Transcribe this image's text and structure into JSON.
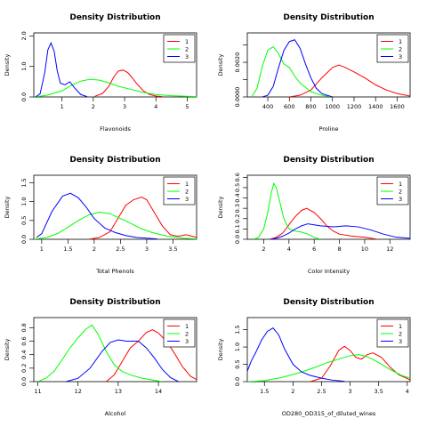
{
  "chart_data": [
    {
      "type": "line",
      "title": "Density Distribution",
      "xlabel": "Flavonoids",
      "ylabel": "Density",
      "xlim": [
        0.1,
        5.3
      ],
      "ylim": [
        0,
        2.1
      ],
      "xticks": [
        1,
        2,
        3,
        4,
        5
      ],
      "yticks": [
        0.0,
        1.0,
        2.0
      ],
      "ytick_labels": [
        "0.0",
        "1.0",
        "2.0"
      ],
      "legend_position": "top-right",
      "series": [
        {
          "name": "1",
          "color": "#ff0000",
          "x": [
            2.05,
            2.3,
            2.5,
            2.65,
            2.8,
            2.95,
            3.1,
            3.25,
            3.4,
            3.6,
            3.8,
            4.0,
            4.2
          ],
          "y": [
            0.02,
            0.12,
            0.35,
            0.65,
            0.85,
            0.88,
            0.8,
            0.62,
            0.42,
            0.2,
            0.08,
            0.03,
            0.01
          ]
        },
        {
          "name": "2",
          "color": "#00ff00",
          "x": [
            0.1,
            0.5,
            1.0,
            1.3,
            1.6,
            1.9,
            2.2,
            2.5,
            2.8,
            3.2,
            3.6,
            4.0,
            4.5,
            5.0,
            5.3
          ],
          "y": [
            0.0,
            0.05,
            0.2,
            0.38,
            0.52,
            0.58,
            0.55,
            0.46,
            0.35,
            0.25,
            0.15,
            0.08,
            0.04,
            0.02,
            0.01
          ]
        },
        {
          "name": "3",
          "color": "#0000ff",
          "x": [
            0.15,
            0.3,
            0.45,
            0.55,
            0.65,
            0.75,
            0.85,
            0.95,
            1.1,
            1.25,
            1.4,
            1.6,
            1.8
          ],
          "y": [
            0.0,
            0.1,
            0.8,
            1.55,
            1.77,
            1.5,
            0.85,
            0.45,
            0.4,
            0.5,
            0.3,
            0.08,
            0.01
          ]
        }
      ]
    },
    {
      "type": "line",
      "title": "Density Distribution",
      "xlabel": "Proline",
      "ylabel": "Density",
      "xlim": [
        210,
        1720
      ],
      "ylim": [
        0,
        0.0037
      ],
      "xticks": [
        400,
        600,
        800,
        1000,
        1200,
        1400,
        1600
      ],
      "yticks": [
        0.0,
        0.001,
        0.002,
        0.003
      ],
      "ytick_labels": [
        "0.0000",
        "",
        "0.0020",
        ""
      ],
      "legend_position": "top-right",
      "series": [
        {
          "name": "1",
          "color": "#ff0000",
          "x": [
            600,
            700,
            800,
            900,
            1000,
            1060,
            1120,
            1200,
            1300,
            1400,
            1500,
            1600,
            1720
          ],
          "y": [
            0.0,
            0.0001,
            0.0004,
            0.0011,
            0.0017,
            0.00185,
            0.0017,
            0.00145,
            0.0011,
            0.0007,
            0.0004,
            0.0002,
            5e-05
          ]
        },
        {
          "name": "2",
          "color": "#00ff00",
          "x": [
            250,
            300,
            350,
            400,
            450,
            500,
            550,
            600,
            650,
            700,
            800,
            900,
            1000
          ],
          "y": [
            0.0,
            0.0005,
            0.0018,
            0.0027,
            0.0029,
            0.0025,
            0.0019,
            0.0017,
            0.0012,
            0.0008,
            0.0003,
            0.0001,
            0.0
          ]
        },
        {
          "name": "3",
          "color": "#0000ff",
          "x": [
            350,
            400,
            450,
            500,
            550,
            600,
            650,
            700,
            750,
            800,
            850,
            900,
            950,
            1000
          ],
          "y": [
            0.0,
            0.0001,
            0.0006,
            0.0017,
            0.0027,
            0.0032,
            0.0033,
            0.0028,
            0.0019,
            0.0011,
            0.0005,
            0.0002,
            0.0001,
            0.0
          ]
        }
      ]
    },
    {
      "type": "line",
      "title": "Density Distribution",
      "xlabel": "Total Phenols",
      "ylabel": "Density",
      "xlim": [
        0.85,
        3.95
      ],
      "ylim": [
        0,
        1.7
      ],
      "xticks": [
        1.0,
        1.5,
        2.0,
        2.5,
        3.0,
        3.5
      ],
      "yticks": [
        0.0,
        0.5,
        1.0,
        1.5
      ],
      "ytick_labels": [
        "0.0",
        "0.5",
        "1.0",
        "1.5"
      ],
      "legend_position": "top-right",
      "series": [
        {
          "name": "1",
          "color": "#ff0000",
          "x": [
            1.9,
            2.1,
            2.3,
            2.45,
            2.6,
            2.75,
            2.9,
            3.0,
            3.15,
            3.3,
            3.45,
            3.6,
            3.75,
            3.95
          ],
          "y": [
            0.0,
            0.05,
            0.2,
            0.55,
            0.9,
            1.05,
            1.12,
            1.05,
            0.7,
            0.35,
            0.12,
            0.08,
            0.12,
            0.05
          ]
        },
        {
          "name": "2",
          "color": "#00ff00",
          "x": [
            0.85,
            1.1,
            1.3,
            1.5,
            1.7,
            1.9,
            2.1,
            2.3,
            2.5,
            2.7,
            2.9,
            3.1,
            3.4,
            3.7,
            3.95
          ],
          "y": [
            0.0,
            0.05,
            0.15,
            0.32,
            0.5,
            0.65,
            0.72,
            0.68,
            0.55,
            0.42,
            0.28,
            0.18,
            0.08,
            0.03,
            0.01
          ]
        },
        {
          "name": "3",
          "color": "#0000ff",
          "x": [
            0.9,
            1.0,
            1.2,
            1.4,
            1.55,
            1.7,
            1.85,
            2.0,
            2.2,
            2.4,
            2.6,
            2.8,
            3.2
          ],
          "y": [
            0.05,
            0.15,
            0.75,
            1.15,
            1.22,
            1.1,
            0.85,
            0.55,
            0.3,
            0.18,
            0.1,
            0.05,
            0.01
          ]
        }
      ]
    },
    {
      "type": "line",
      "title": "Density Distribution",
      "xlabel": "Color Intensity",
      "ylabel": "Density",
      "xlim": [
        0.7,
        13.6
      ],
      "ylim": [
        0,
        0.62
      ],
      "xticks": [
        2,
        4,
        6,
        8,
        10,
        12
      ],
      "yticks": [
        0.0,
        0.1,
        0.2,
        0.3,
        0.4,
        0.5,
        0.6
      ],
      "ytick_labels": [
        "0.0",
        "0.1",
        "0.2",
        "0.3",
        "0.4",
        "0.5",
        "0.6"
      ],
      "legend_position": "top-right",
      "series": [
        {
          "name": "1",
          "color": "#ff0000",
          "x": [
            2.5,
            3.0,
            3.5,
            4.0,
            4.5,
            5.0,
            5.4,
            6.0,
            6.5,
            7.0,
            7.5,
            8.0,
            9.0,
            10.0,
            11.0
          ],
          "y": [
            0.0,
            0.02,
            0.06,
            0.14,
            0.22,
            0.28,
            0.3,
            0.26,
            0.2,
            0.13,
            0.08,
            0.05,
            0.03,
            0.02,
            0.0
          ]
        },
        {
          "name": "2",
          "color": "#00ff00",
          "x": [
            1.2,
            1.6,
            2.0,
            2.3,
            2.6,
            2.8,
            3.0,
            3.3,
            3.6,
            4.0,
            4.5,
            5.0,
            5.5,
            6.0,
            6.5
          ],
          "y": [
            0.0,
            0.02,
            0.1,
            0.25,
            0.45,
            0.54,
            0.5,
            0.35,
            0.2,
            0.1,
            0.08,
            0.07,
            0.05,
            0.02,
            0.0
          ]
        },
        {
          "name": "3",
          "color": "#0000ff",
          "x": [
            2.5,
            3.0,
            3.5,
            4.0,
            4.5,
            5.0,
            5.5,
            6.5,
            7.5,
            8.5,
            9.5,
            10.5,
            11.5,
            12.5,
            13.6
          ],
          "y": [
            0.0,
            0.01,
            0.03,
            0.06,
            0.1,
            0.13,
            0.15,
            0.13,
            0.12,
            0.13,
            0.12,
            0.09,
            0.05,
            0.02,
            0.01
          ]
        }
      ]
    },
    {
      "type": "line",
      "title": "Density Distribution",
      "xlabel": "Alcohol",
      "ylabel": "Density",
      "xlim": [
        10.9,
        14.95
      ],
      "ylim": [
        0,
        0.95
      ],
      "xticks": [
        11,
        12,
        13,
        14
      ],
      "yticks": [
        0.0,
        0.2,
        0.4,
        0.6,
        0.8
      ],
      "ytick_labels": [
        "0.0",
        "0.2",
        "0.4",
        "0.6",
        "0.8"
      ],
      "legend_position": "top-right",
      "series": [
        {
          "name": "1",
          "color": "#ff0000",
          "x": [
            12.7,
            12.9,
            13.1,
            13.3,
            13.5,
            13.7,
            13.85,
            14.0,
            14.2,
            14.4,
            14.6,
            14.8,
            14.95
          ],
          "y": [
            0.0,
            0.1,
            0.3,
            0.5,
            0.6,
            0.73,
            0.77,
            0.72,
            0.6,
            0.42,
            0.22,
            0.08,
            0.03
          ]
        },
        {
          "name": "2",
          "color": "#00ff00",
          "x": [
            11.0,
            11.2,
            11.4,
            11.6,
            11.8,
            12.0,
            12.2,
            12.35,
            12.5,
            12.7,
            12.9,
            13.1,
            13.3,
            13.6,
            13.9,
            14.1
          ],
          "y": [
            0.0,
            0.05,
            0.15,
            0.32,
            0.5,
            0.65,
            0.78,
            0.84,
            0.7,
            0.45,
            0.25,
            0.15,
            0.1,
            0.05,
            0.02,
            0.0
          ]
        },
        {
          "name": "3",
          "color": "#0000ff",
          "x": [
            11.7,
            12.0,
            12.3,
            12.6,
            12.8,
            13.0,
            13.2,
            13.5,
            13.7,
            13.9,
            14.1,
            14.3,
            14.5
          ],
          "y": [
            0.0,
            0.05,
            0.2,
            0.45,
            0.58,
            0.62,
            0.6,
            0.6,
            0.5,
            0.35,
            0.18,
            0.06,
            0.0
          ]
        }
      ]
    },
    {
      "type": "line",
      "title": "Density Distribution",
      "xlabel": "OD280_OD315_of_diluted_wines",
      "ylabel": "Density",
      "xlim": [
        1.2,
        4.05
      ],
      "ylim": [
        0,
        1.85
      ],
      "xticks": [
        1.5,
        2.0,
        2.5,
        3.0,
        3.5,
        4.0
      ],
      "yticks": [
        0.0,
        0.5,
        1.0,
        1.5
      ],
      "ytick_labels": [
        "0.0",
        "0.5",
        "1.0",
        "1.5"
      ],
      "legend_position": "top-right",
      "series": [
        {
          "name": "1",
          "color": "#ff0000",
          "x": [
            2.3,
            2.5,
            2.65,
            2.8,
            2.9,
            3.0,
            3.1,
            3.2,
            3.3,
            3.4,
            3.55,
            3.7,
            3.85,
            4.05
          ],
          "y": [
            0.0,
            0.1,
            0.45,
            0.9,
            1.02,
            0.9,
            0.7,
            0.65,
            0.78,
            0.83,
            0.7,
            0.42,
            0.2,
            0.05
          ]
        },
        {
          "name": "2",
          "color": "#00ff00",
          "x": [
            1.2,
            1.5,
            1.8,
            2.1,
            2.4,
            2.6,
            2.8,
            3.0,
            3.15,
            3.3,
            3.5,
            3.7,
            3.9,
            4.05
          ],
          "y": [
            0.0,
            0.03,
            0.12,
            0.25,
            0.42,
            0.55,
            0.65,
            0.75,
            0.78,
            0.72,
            0.55,
            0.35,
            0.18,
            0.1
          ]
        },
        {
          "name": "3",
          "color": "#0000ff",
          "x": [
            1.2,
            1.27,
            1.35,
            1.45,
            1.55,
            1.65,
            1.75,
            1.85,
            2.0,
            2.15,
            2.3,
            2.5,
            2.7,
            2.9
          ],
          "y": [
            0.3,
            0.6,
            0.85,
            1.2,
            1.45,
            1.55,
            1.35,
            0.95,
            0.5,
            0.28,
            0.18,
            0.1,
            0.04,
            0.01
          ]
        }
      ]
    }
  ]
}
